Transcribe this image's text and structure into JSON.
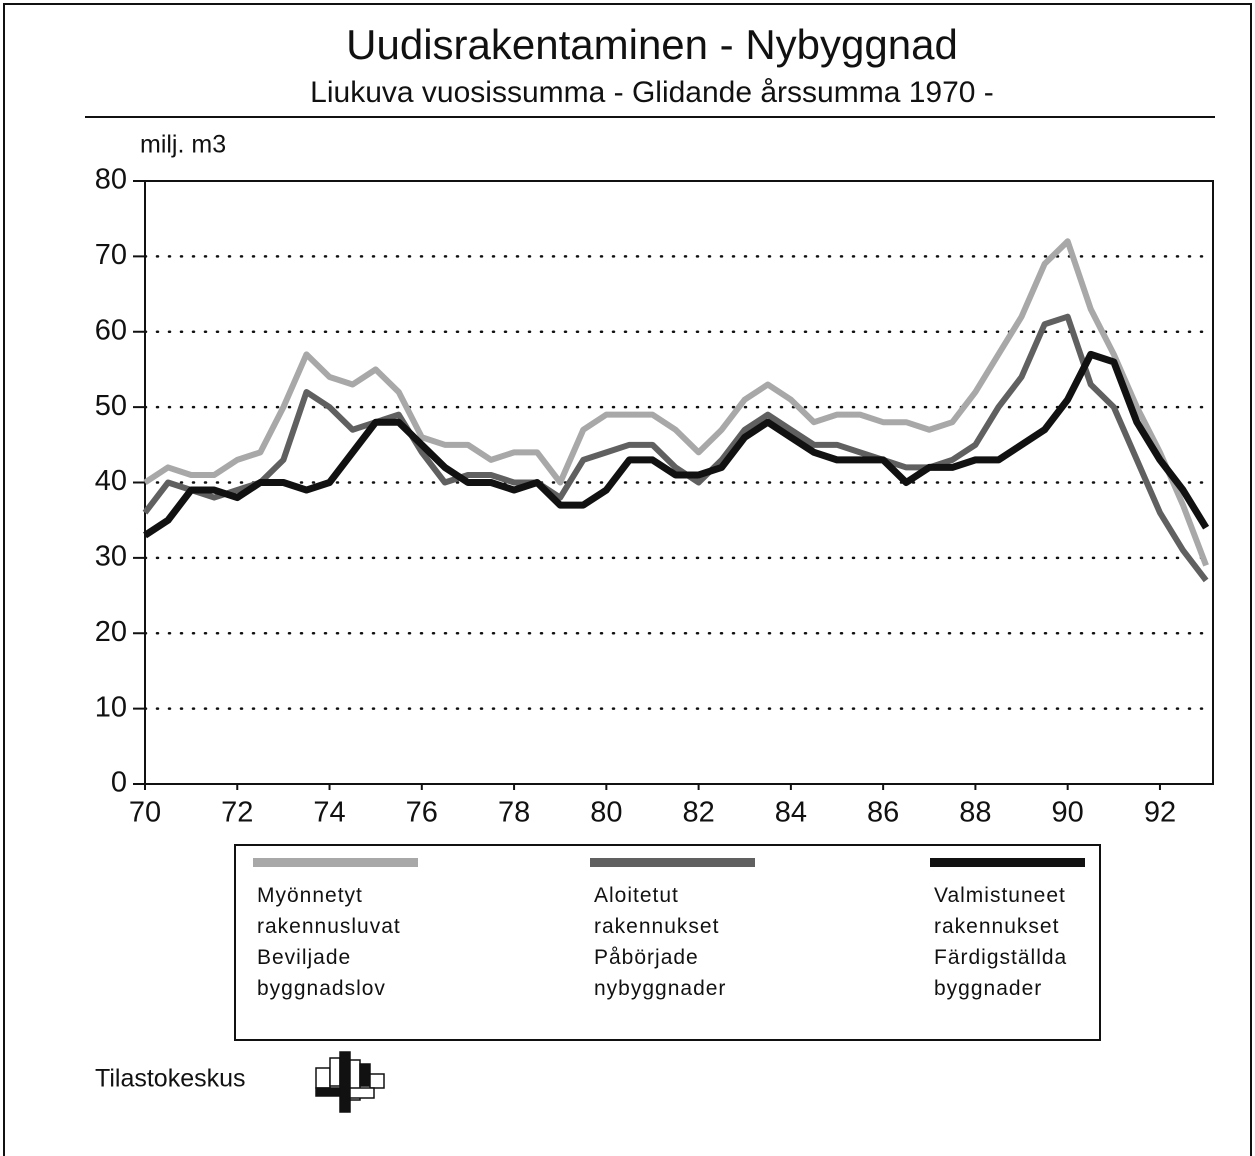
{
  "chart_data": {
    "type": "line",
    "title": "Uudisrakentaminen - Nybyggnad",
    "subtitle": "Liukuva vuosissumma - Glidande årssumma 1970 -",
    "y_label": "milj. m3",
    "source": "Tilastokeskus",
    "x": [
      70,
      70.5,
      71,
      71.5,
      72,
      72.5,
      73,
      73.5,
      74,
      74.5,
      75,
      75.5,
      76,
      76.5,
      77,
      77.5,
      78,
      78.5,
      79,
      79.5,
      80,
      80.5,
      81,
      81.5,
      82,
      82.5,
      83,
      83.5,
      84,
      84.5,
      85,
      85.5,
      86,
      86.5,
      87,
      87.5,
      88,
      88.5,
      89,
      89.5,
      90,
      90.5,
      91,
      91.5,
      92,
      92.5,
      93
    ],
    "series": [
      {
        "name": "Myönnetyt\nrakennusluvat\nBeviljade\nbyggnadslov",
        "color": "#a8a8a8",
        "values": [
          40,
          42,
          41,
          41,
          43,
          44,
          50,
          57,
          54,
          53,
          55,
          52,
          46,
          45,
          45,
          43,
          44,
          44,
          40,
          47,
          49,
          49,
          49,
          47,
          44,
          47,
          51,
          53,
          51,
          48,
          49,
          49,
          48,
          48,
          47,
          48,
          52,
          57,
          62,
          69,
          72,
          63,
          57,
          50,
          44,
          37,
          29
        ]
      },
      {
        "name": "Aloitetut\nrakennukset\nPåbörjade\nnybyggnader",
        "color": "#606060",
        "values": [
          36,
          40,
          39,
          38,
          39,
          40,
          43,
          52,
          50,
          47,
          48,
          49,
          44,
          40,
          41,
          41,
          40,
          40,
          38,
          43,
          44,
          45,
          45,
          42,
          40,
          43,
          47,
          49,
          47,
          45,
          45,
          44,
          43,
          42,
          42,
          43,
          45,
          50,
          54,
          61,
          62,
          53,
          50,
          43,
          36,
          31,
          27
        ]
      },
      {
        "name": "Valmistuneet\nrakennukset\nFärdigställda\nbyggnader",
        "color": "#111111",
        "values": [
          33,
          35,
          39,
          39,
          38,
          40,
          40,
          39,
          40,
          44,
          48,
          48,
          45,
          42,
          40,
          40,
          39,
          40,
          37,
          37,
          39,
          43,
          43,
          41,
          41,
          42,
          46,
          48,
          46,
          44,
          43,
          43,
          43,
          40,
          42,
          42,
          43,
          43,
          45,
          47,
          51,
          57,
          56,
          48,
          43,
          39,
          34
        ]
      }
    ],
    "xlim": [
      70,
      93.15
    ],
    "xticks": [
      70,
      72,
      74,
      76,
      78,
      80,
      82,
      84,
      86,
      88,
      90,
      92
    ],
    "ylim": [
      0,
      80
    ],
    "yticks": [
      0,
      10,
      20,
      30,
      40,
      50,
      60,
      70,
      80
    ],
    "grid": true
  }
}
